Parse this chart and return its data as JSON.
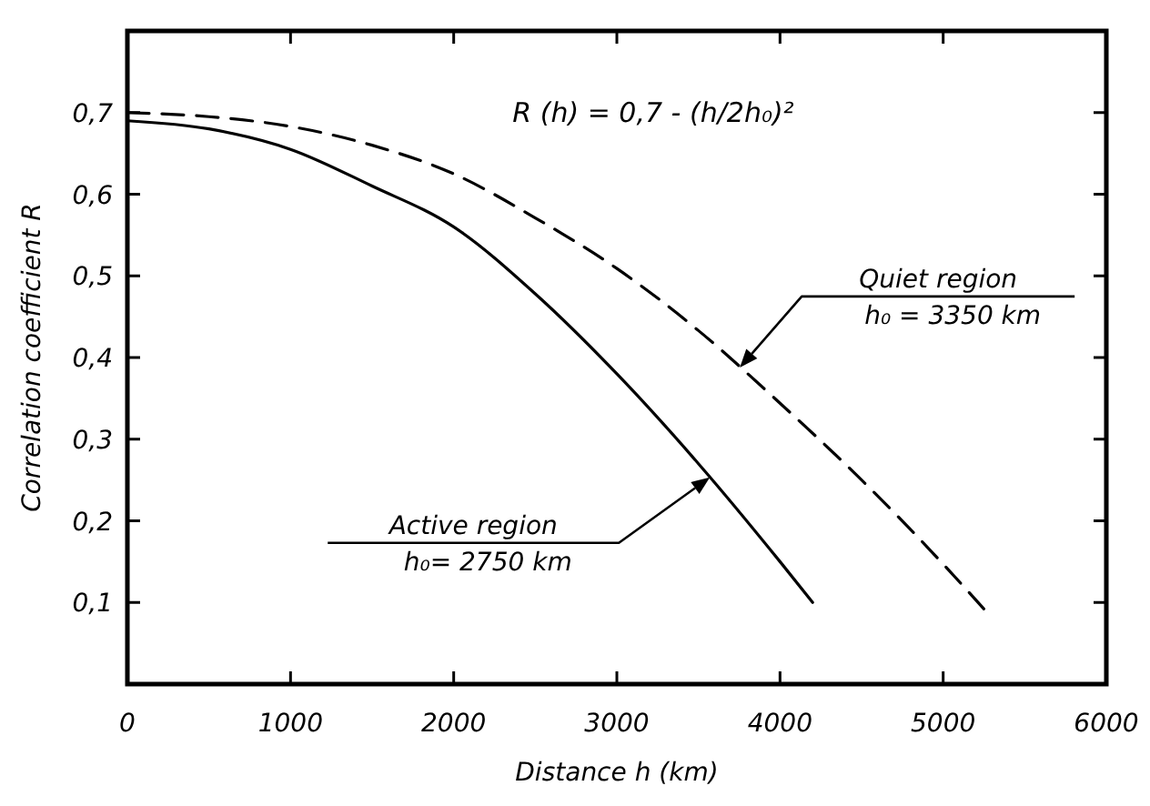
{
  "chart_data": {
    "type": "line",
    "xlabel": "Distance h (km)",
    "ylabel": "Correlation coefficient R",
    "annotations": [
      "R (h) = 0,7 - (h/2h₀)²",
      "Quiet region",
      "h₀ = 3350 km",
      "Active region",
      "h₀= 2750 km"
    ],
    "series": [
      {
        "color": "#000000",
        "line_style": "dashed",
        "x": [
          0,
          500,
          1000,
          1500,
          2000,
          2500,
          3000,
          3500,
          4000,
          4500,
          5000,
          5250
        ],
        "values": [
          0.7,
          0.695,
          0.683,
          0.66,
          0.625,
          0.571,
          0.509,
          0.433,
          0.344,
          0.25,
          0.147,
          0.092
        ]
      },
      {
        "color": "#000000",
        "line_style": "solid",
        "x": [
          0,
          500,
          1000,
          1500,
          2000,
          2500,
          3000,
          3500,
          4000,
          4200
        ],
        "values": [
          0.69,
          0.68,
          0.655,
          0.61,
          0.56,
          0.478,
          0.38,
          0.27,
          0.15,
          0.1
        ]
      }
    ],
    "xlim": [
      0,
      6000
    ],
    "xticks": [
      0,
      1000,
      2000,
      3000,
      4000,
      5000,
      6000
    ],
    "ylim": [
      0,
      0.8
    ],
    "yticks": [
      {
        "value": 0.1,
        "label": "0,1"
      },
      {
        "value": 0.2,
        "label": "0,2"
      },
      {
        "value": 0.3,
        "label": "0,3"
      },
      {
        "value": 0.4,
        "label": "0,4"
      },
      {
        "value": 0.5,
        "label": "0,5"
      },
      {
        "value": 0.6,
        "label": "0,6"
      },
      {
        "value": 0.7,
        "label": "0,7"
      }
    ],
    "grid": false,
    "marker": "none"
  }
}
